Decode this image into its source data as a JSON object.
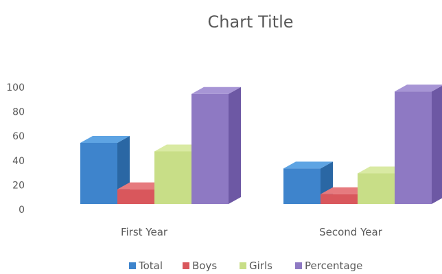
{
  "chart_data": {
    "type": "bar",
    "title": "Chart Title",
    "xlabel": "",
    "ylabel": "",
    "categories": [
      "First Year",
      "Second Year"
    ],
    "series": [
      {
        "name": "Total",
        "values": [
          50,
          29
        ],
        "color": "#3E84CC",
        "side_color": "#2A67A4",
        "top_color": "#5EA4E3"
      },
      {
        "name": "Boys",
        "values": [
          12,
          8
        ],
        "color": "#D9575C",
        "side_color": "#B74247",
        "top_color": "#E67A7E"
      },
      {
        "name": "Girls",
        "values": [
          43,
          25
        ],
        "color": "#C8DE87",
        "side_color": "#A8C063",
        "top_color": "#D9EAA3"
      },
      {
        "name": "Percentage",
        "values": [
          90,
          92
        ],
        "color": "#8E79C3",
        "side_color": "#6D58A4",
        "top_color": "#A795D5"
      }
    ],
    "ylim": [
      0,
      100
    ],
    "yticks": [
      0,
      20,
      40,
      60,
      80,
      100
    ],
    "ytick_labels": [
      "0",
      "20",
      "40",
      "60",
      "80",
      "100"
    ],
    "grid": false,
    "legend": "bottom",
    "style": "3d-column"
  }
}
